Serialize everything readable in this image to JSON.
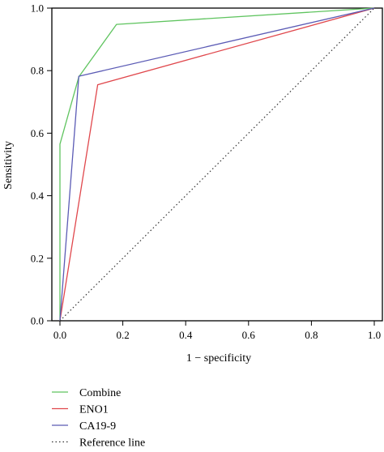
{
  "chart_data": {
    "type": "line",
    "title": "",
    "xlabel": "1 − specificity",
    "ylabel": "Sensitivity",
    "xlim": [
      0,
      1
    ],
    "ylim": [
      0,
      1
    ],
    "xticks": [
      0,
      0.2,
      0.4,
      0.6,
      0.8,
      1.0
    ],
    "yticks": [
      0,
      0.2,
      0.4,
      0.6,
      0.8,
      1.0
    ],
    "xtick_labels": [
      "0.0",
      "0.2",
      "0.4",
      "0.6",
      "0.8",
      "1.0"
    ],
    "ytick_labels": [
      "0.0",
      "0.2",
      "0.4",
      "0.6",
      "0.8",
      "1.0"
    ],
    "grid": false,
    "legend_position": "bottom",
    "series": [
      {
        "name": "Combine",
        "color": "#5fc45f",
        "style": "solid",
        "points": [
          [
            0,
            0
          ],
          [
            0,
            0.565
          ],
          [
            0.06,
            0.78
          ],
          [
            0.18,
            0.948
          ],
          [
            1,
            1
          ]
        ]
      },
      {
        "name": "ENO1",
        "color": "#e0474c",
        "style": "solid",
        "points": [
          [
            0,
            0
          ],
          [
            0.12,
            0.755
          ],
          [
            1,
            1
          ]
        ]
      },
      {
        "name": "CA19-9",
        "color": "#5b5bb5",
        "style": "solid",
        "points": [
          [
            0,
            0
          ],
          [
            0.06,
            0.782
          ],
          [
            1,
            1
          ]
        ]
      },
      {
        "name": "Reference line",
        "color": "#333333",
        "style": "dotted",
        "points": [
          [
            0,
            0
          ],
          [
            1,
            1
          ]
        ]
      }
    ]
  }
}
